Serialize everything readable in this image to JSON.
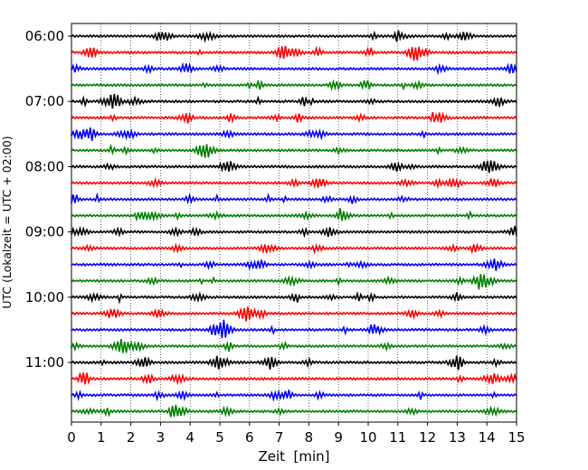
{
  "chart_data": {
    "type": "line",
    "title": "",
    "xlabel": "Zeit  [min]",
    "ylabel": "UTC (Lokalzeit = UTC + 02:00)",
    "xlim": [
      0,
      15
    ],
    "x_ticks": [
      "0",
      "1",
      "2",
      "3",
      "4",
      "5",
      "6",
      "7",
      "8",
      "9",
      "10",
      "11",
      "12",
      "13",
      "14",
      "15"
    ],
    "y_ticks": [
      "06:00",
      "07:00",
      "08:00",
      "09:00",
      "10:00",
      "11:00"
    ],
    "trace_interval_min": 15,
    "grid": "vertical dotted at each minute",
    "colors": [
      "#000000",
      "#ff0000",
      "#0000ff",
      "#008000"
    ],
    "traces": [
      {
        "start": "06:00",
        "color": "#000000"
      },
      {
        "start": "06:15",
        "color": "#ff0000"
      },
      {
        "start": "06:30",
        "color": "#0000ff"
      },
      {
        "start": "06:45",
        "color": "#008000"
      },
      {
        "start": "07:00",
        "color": "#000000"
      },
      {
        "start": "07:15",
        "color": "#ff0000"
      },
      {
        "start": "07:30",
        "color": "#0000ff"
      },
      {
        "start": "07:45",
        "color": "#008000"
      },
      {
        "start": "08:00",
        "color": "#000000"
      },
      {
        "start": "08:15",
        "color": "#ff0000"
      },
      {
        "start": "08:30",
        "color": "#0000ff"
      },
      {
        "start": "08:45",
        "color": "#008000"
      },
      {
        "start": "09:00",
        "color": "#000000"
      },
      {
        "start": "09:15",
        "color": "#ff0000"
      },
      {
        "start": "09:30",
        "color": "#0000ff"
      },
      {
        "start": "09:45",
        "color": "#008000"
      },
      {
        "start": "10:00",
        "color": "#000000"
      },
      {
        "start": "10:15",
        "color": "#ff0000"
      },
      {
        "start": "10:30",
        "color": "#0000ff"
      },
      {
        "start": "10:45",
        "color": "#008000"
      },
      {
        "start": "11:00",
        "color": "#000000"
      },
      {
        "start": "11:15",
        "color": "#ff0000"
      },
      {
        "start": "11:30",
        "color": "#0000ff"
      },
      {
        "start": "11:45",
        "color": "#008000"
      }
    ],
    "events_min": [
      {
        "trace": "06:15",
        "x": 11.6
      },
      {
        "trace": "07:00",
        "x": 1.4
      },
      {
        "trace": "07:45",
        "x": 4.5
      },
      {
        "trace": "08:00",
        "x": 14.1
      },
      {
        "trace": "09:45",
        "x": 13.8
      },
      {
        "trace": "10:15",
        "x": 5.9
      },
      {
        "trace": "10:45",
        "x": 1.7
      }
    ]
  }
}
